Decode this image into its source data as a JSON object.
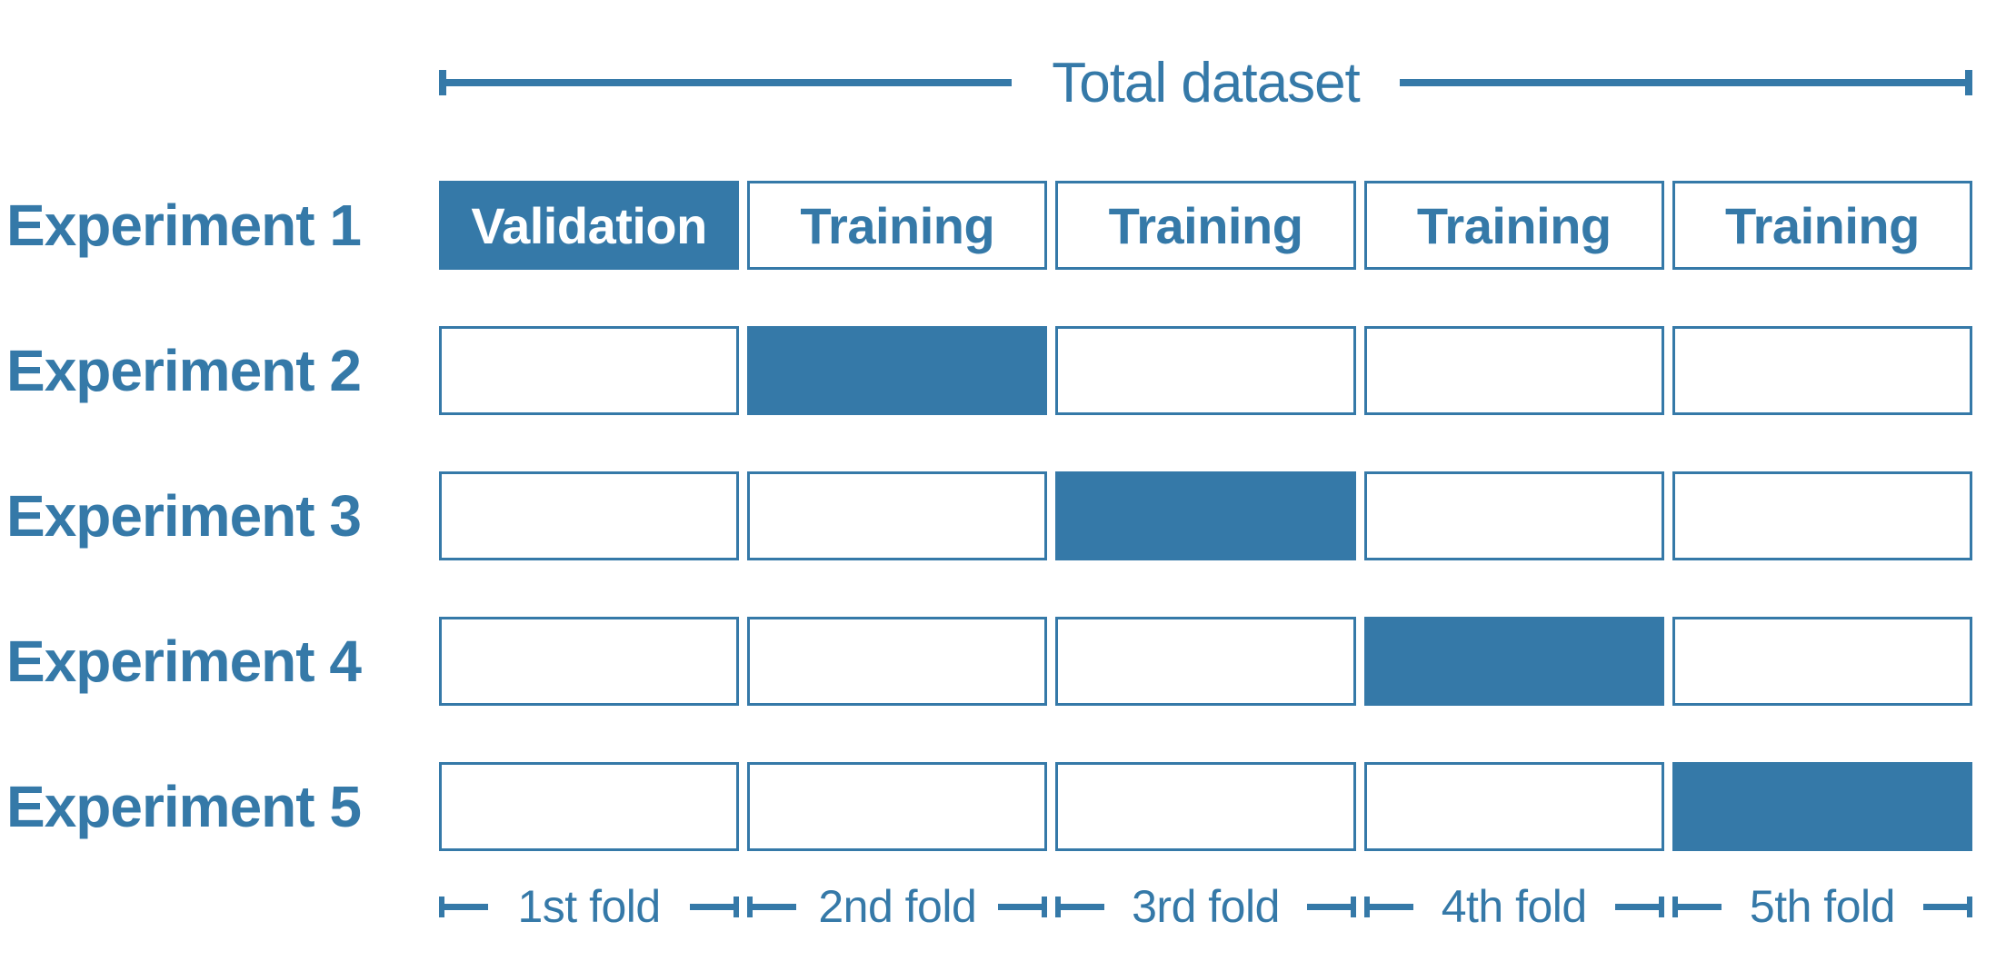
{
  "colors": {
    "accent": "#3579A8",
    "background": "#FFFFFF",
    "filled_cell_text": "#FFFFFF"
  },
  "header": {
    "title": "Total dataset"
  },
  "experiments": [
    {
      "label": "Experiment 1",
      "cells": [
        {
          "text": "Validation",
          "filled": true
        },
        {
          "text": "Training",
          "filled": false
        },
        {
          "text": "Training",
          "filled": false
        },
        {
          "text": "Training",
          "filled": false
        },
        {
          "text": "Training",
          "filled": false
        }
      ]
    },
    {
      "label": "Experiment 2",
      "cells": [
        {
          "text": "",
          "filled": false
        },
        {
          "text": "",
          "filled": true
        },
        {
          "text": "",
          "filled": false
        },
        {
          "text": "",
          "filled": false
        },
        {
          "text": "",
          "filled": false
        }
      ]
    },
    {
      "label": "Experiment 3",
      "cells": [
        {
          "text": "",
          "filled": false
        },
        {
          "text": "",
          "filled": false
        },
        {
          "text": "",
          "filled": true
        },
        {
          "text": "",
          "filled": false
        },
        {
          "text": "",
          "filled": false
        }
      ]
    },
    {
      "label": "Experiment 4",
      "cells": [
        {
          "text": "",
          "filled": false
        },
        {
          "text": "",
          "filled": false
        },
        {
          "text": "",
          "filled": false
        },
        {
          "text": "",
          "filled": true
        },
        {
          "text": "",
          "filled": false
        }
      ]
    },
    {
      "label": "Experiment 5",
      "cells": [
        {
          "text": "",
          "filled": false
        },
        {
          "text": "",
          "filled": false
        },
        {
          "text": "",
          "filled": false
        },
        {
          "text": "",
          "filled": false
        },
        {
          "text": "",
          "filled": true
        }
      ]
    }
  ],
  "folds": [
    {
      "label": "1st fold"
    },
    {
      "label": "2nd fold"
    },
    {
      "label": "3rd fold"
    },
    {
      "label": "4th fold"
    },
    {
      "label": "5th fold"
    }
  ]
}
